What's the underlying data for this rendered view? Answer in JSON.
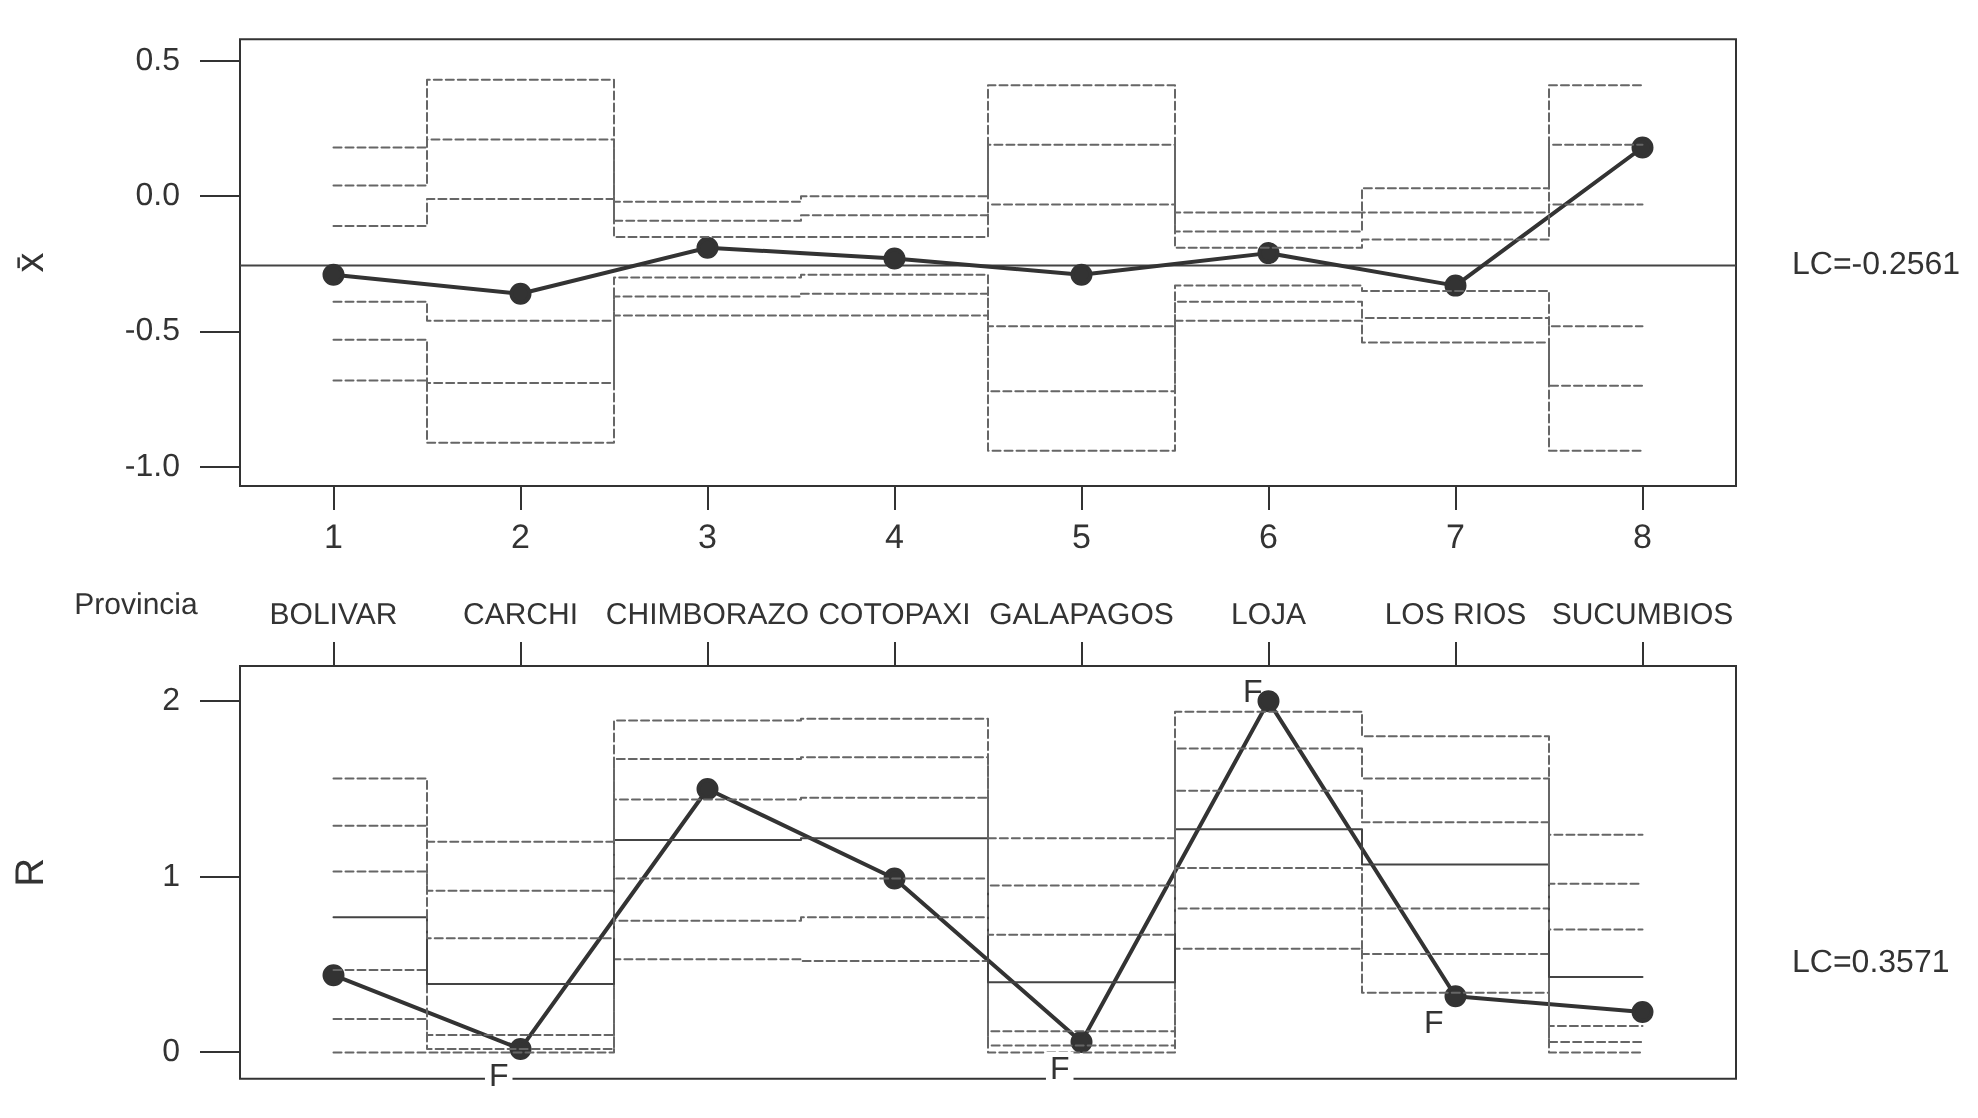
{
  "chart_data": [
    {
      "type": "line",
      "ylabel": "x̄",
      "categories": [
        "1",
        "2",
        "3",
        "4",
        "5",
        "6",
        "7",
        "8"
      ],
      "ylim": [
        -1.07,
        0.58
      ],
      "yticks": [
        {
          "value": -1,
          "label": "-1.0"
        },
        -0.5,
        {
          "value": 0,
          "label": "0.0"
        },
        0.5
      ],
      "grid": false,
      "legend": false,
      "marker": "circle",
      "ref_lines": [
        {
          "axis": "y",
          "value": -0.2561,
          "label": "LC=-0.2561",
          "color": "#444444",
          "line_style": "solid"
        }
      ],
      "series": [
        {
          "type": "step",
          "marker": "none",
          "line_style": "dashed",
          "color": "#666666",
          "values": [
            0.18,
            0.43,
            -0.02,
            0,
            0.41,
            -0.06,
            0.03,
            0.41
          ]
        },
        {
          "type": "step",
          "marker": "none",
          "line_style": "dashed",
          "color": "#666666",
          "values": [
            0.04,
            0.21,
            -0.09,
            -0.07,
            0.19,
            -0.13,
            -0.06,
            0.19
          ]
        },
        {
          "type": "step",
          "marker": "none",
          "line_style": "dashed",
          "color": "#666666",
          "values": [
            -0.11,
            -0.01,
            -0.15,
            -0.15,
            -0.03,
            -0.19,
            -0.16,
            -0.03
          ]
        },
        {
          "type": "step",
          "marker": "none",
          "line_style": "dashed",
          "color": "#666666",
          "values": [
            -0.39,
            -0.46,
            -0.3,
            -0.29,
            -0.48,
            -0.33,
            -0.35,
            -0.48
          ]
        },
        {
          "type": "step",
          "marker": "none",
          "line_style": "dashed",
          "color": "#666666",
          "values": [
            -0.53,
            -0.69,
            -0.37,
            -0.36,
            -0.72,
            -0.39,
            -0.45,
            -0.7
          ]
        },
        {
          "type": "step",
          "marker": "none",
          "line_style": "dashed",
          "color": "#666666",
          "values": [
            -0.68,
            -0.91,
            -0.44,
            -0.44,
            -0.94,
            -0.46,
            -0.54,
            -0.94
          ]
        },
        {
          "line_style": "solid",
          "color": "#333333",
          "values": [
            -0.29,
            -0.36,
            -0.19,
            -0.23,
            -0.29,
            -0.21,
            -0.33,
            0.18
          ]
        }
      ]
    },
    {
      "type": "line",
      "xlabel": "Provincia",
      "ylabel": "R",
      "categories": [
        "BOLIVAR",
        "CARCHI",
        "CHIMBORAZO",
        "COTOPAXI",
        "GALAPAGOS",
        "LOJA",
        "LOS RIOS",
        "SUCUMBIOS"
      ],
      "ylim": [
        -0.15,
        2.2
      ],
      "yticks": [
        0,
        1,
        2
      ],
      "grid": false,
      "legend": false,
      "marker": "circle",
      "annotations": [
        "LC=0.3571",
        {
          "text": "F",
          "x": "CARCHI",
          "y": 0.02
        },
        {
          "text": "F",
          "x": "GALAPAGOS",
          "y": 0.06
        },
        {
          "text": "F",
          "x": "LOJA",
          "y": 2.0
        },
        {
          "text": "F",
          "x": "LOS RIOS",
          "y": 0.32
        }
      ],
      "series": [
        {
          "type": "step",
          "marker": "none",
          "line_style": "dashed",
          "color": "#666666",
          "values": [
            1.56,
            1.2,
            1.89,
            1.9,
            1.22,
            1.94,
            1.8,
            1.24
          ]
        },
        {
          "type": "step",
          "marker": "none",
          "line_style": "dashed",
          "color": "#666666",
          "values": [
            1.29,
            0.92,
            1.67,
            1.68,
            0.95,
            1.73,
            1.56,
            0.96
          ]
        },
        {
          "type": "step",
          "marker": "none",
          "line_style": "dashed",
          "color": "#666666",
          "values": [
            1.03,
            0.65,
            1.44,
            1.45,
            0.67,
            1.49,
            1.31,
            0.7
          ]
        },
        {
          "type": "step",
          "marker": "none",
          "line_style": "solid",
          "color": "#444444",
          "values": [
            0.77,
            0.39,
            1.21,
            1.22,
            0.4,
            1.27,
            1.07,
            0.43
          ]
        },
        {
          "type": "step",
          "marker": "none",
          "line_style": "dashed",
          "color": "#666666",
          "values": [
            0.47,
            0.1,
            0.99,
            0.99,
            0.12,
            1.05,
            0.82,
            0.15
          ]
        },
        {
          "type": "step",
          "marker": "none",
          "line_style": "dashed",
          "color": "#666666",
          "values": [
            0.19,
            0.02,
            0.75,
            0.77,
            0.04,
            0.82,
            0.56,
            0.06
          ]
        },
        {
          "type": "step",
          "marker": "none",
          "line_style": "dashed",
          "color": "#666666",
          "values": [
            0,
            0,
            0.53,
            0.52,
            0,
            0.59,
            0.34,
            0
          ]
        },
        {
          "line_style": "solid",
          "color": "#333333",
          "values": [
            0.44,
            0.02,
            1.5,
            0.99,
            0.06,
            2.0,
            0.32,
            0.23
          ]
        }
      ]
    }
  ]
}
